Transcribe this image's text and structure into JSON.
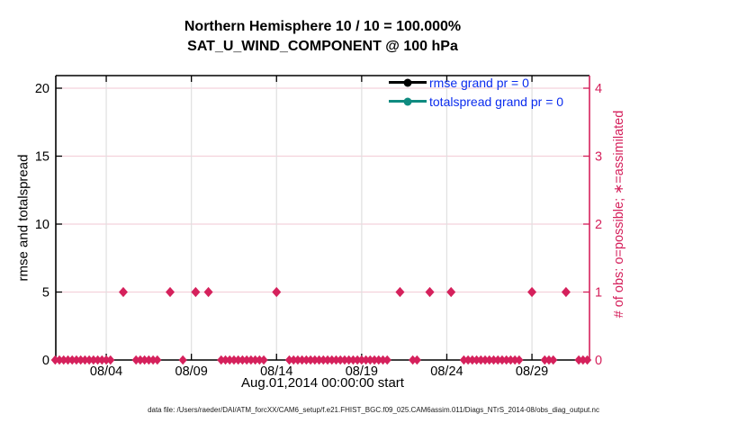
{
  "chart_data": {
    "type": "scatter",
    "title": "Northern Hemisphere 10 / 10 = 100.000%",
    "subtitle": "SAT_U_WIND_COMPONENT @ 100 hPa",
    "xlabel": "Aug.01,2014 00:00:00 start",
    "ylabel_left": "rmse and totalspread",
    "ylabel_right": "# of obs: o=possible; ∗=assimilated",
    "x_ticks": [
      {
        "label": "08/04",
        "day": 3
      },
      {
        "label": "08/09",
        "day": 8
      },
      {
        "label": "08/14",
        "day": 13
      },
      {
        "label": "08/19",
        "day": 18
      },
      {
        "label": "08/24",
        "day": 23
      },
      {
        "label": "08/29",
        "day": 28
      }
    ],
    "x_range_days": [
      0,
      31.35
    ],
    "left_axis": {
      "ticks": [
        0,
        5,
        10,
        15,
        20
      ],
      "lim": [
        0,
        20.9
      ]
    },
    "right_axis": {
      "ticks": [
        0,
        1,
        2,
        3,
        4
      ],
      "lim": [
        0,
        4.18
      ]
    },
    "legend": [
      {
        "label": "rmse grand pr = 0",
        "line_color": "#000000",
        "text_color": "#0a2cee"
      },
      {
        "label": "totalspread grand pr = 0",
        "line_color": "#0f8b80",
        "text_color": "#0a2cee"
      }
    ],
    "obs_series": {
      "name": "# of obs (o=possible and *=assimilated overlap)",
      "marker": "diamond",
      "color": "#d5215c",
      "count_one_days": [
        4.0,
        6.75,
        8.25,
        9.0,
        13.0,
        20.25,
        22.0,
        23.25,
        28.0,
        30.0
      ],
      "zero_band": {
        "start_day": 0,
        "end_day": 31.25,
        "step_days": 0.25,
        "value": 0
      }
    },
    "grid": {
      "vertical_color": "#e0e0e0",
      "horizontal_color": "#f4d2dc"
    },
    "colors": {
      "accent_crimson": "#d5215c",
      "legend_text_blue": "#0a2cee",
      "teal": "#0f8b80",
      "black": "#000000"
    }
  },
  "footer": {
    "data_file_line": "data file: /Users/raeder/DAI/ATM_forcXX/CAM6_setup/f.e21.FHIST_BGC.f09_025.CAM6assim.011/Diags_NTrS_2014-08/obs_diag_output.nc"
  }
}
